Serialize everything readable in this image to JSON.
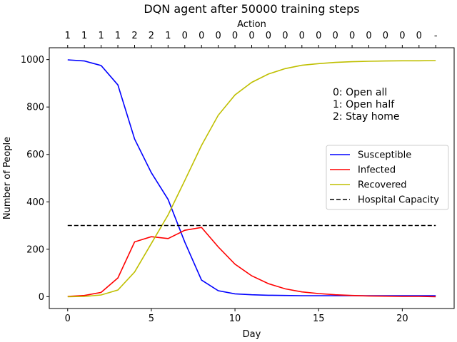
{
  "chart_data": {
    "type": "line",
    "title": "DQN agent after 50000 training steps",
    "xlabel": "Day",
    "ylabel": "Number of People",
    "top_axis_label": "Action",
    "xlim": [
      -1.1,
      23.1
    ],
    "ylim": [
      -50,
      1050
    ],
    "x_ticks": [
      0,
      5,
      10,
      15,
      20
    ],
    "y_ticks": [
      0,
      200,
      400,
      600,
      800,
      1000
    ],
    "grid": false,
    "legend_position": "center-right",
    "x": [
      0,
      1,
      2,
      3,
      4,
      5,
      6,
      7,
      8,
      9,
      10,
      11,
      12,
      13,
      14,
      15,
      16,
      17,
      18,
      19,
      20,
      21,
      22
    ],
    "actions": [
      "1",
      "1",
      "1",
      "1",
      "2",
      "2",
      "1",
      "0",
      "0",
      "0",
      "0",
      "0",
      "0",
      "0",
      "0",
      "0",
      "0",
      "0",
      "0",
      "0",
      "0",
      "0",
      "-"
    ],
    "annotation": [
      "0: Open all",
      "1: Open half",
      "2: Stay home"
    ],
    "series": [
      {
        "name": "Susceptible",
        "color": "#0000ff",
        "style": "solid",
        "values": [
          999,
          994,
          975,
          893,
          665,
          523,
          410,
          230,
          70,
          25,
          12,
          8,
          6,
          5,
          4,
          4,
          4,
          4,
          4,
          4,
          4,
          4,
          4
        ]
      },
      {
        "name": "Infected",
        "color": "#ff0000",
        "style": "solid",
        "values": [
          1,
          5,
          18,
          79,
          231,
          253,
          245,
          280,
          292,
          210,
          137,
          88,
          55,
          33,
          20,
          13,
          8,
          5,
          3,
          2,
          1,
          1,
          0
        ]
      },
      {
        "name": "Recovered",
        "color": "#bfbf00",
        "style": "solid",
        "values": [
          0,
          1,
          7,
          28,
          104,
          224,
          345,
          490,
          638,
          765,
          851,
          904,
          939,
          962,
          976,
          983,
          988,
          991,
          993,
          994,
          995,
          995,
          996
        ]
      },
      {
        "name": "Hospital Capacity",
        "color": "#000000",
        "style": "dashed",
        "values": [
          300,
          300,
          300,
          300,
          300,
          300,
          300,
          300,
          300,
          300,
          300,
          300,
          300,
          300,
          300,
          300,
          300,
          300,
          300,
          300,
          300,
          300,
          300
        ]
      }
    ]
  }
}
